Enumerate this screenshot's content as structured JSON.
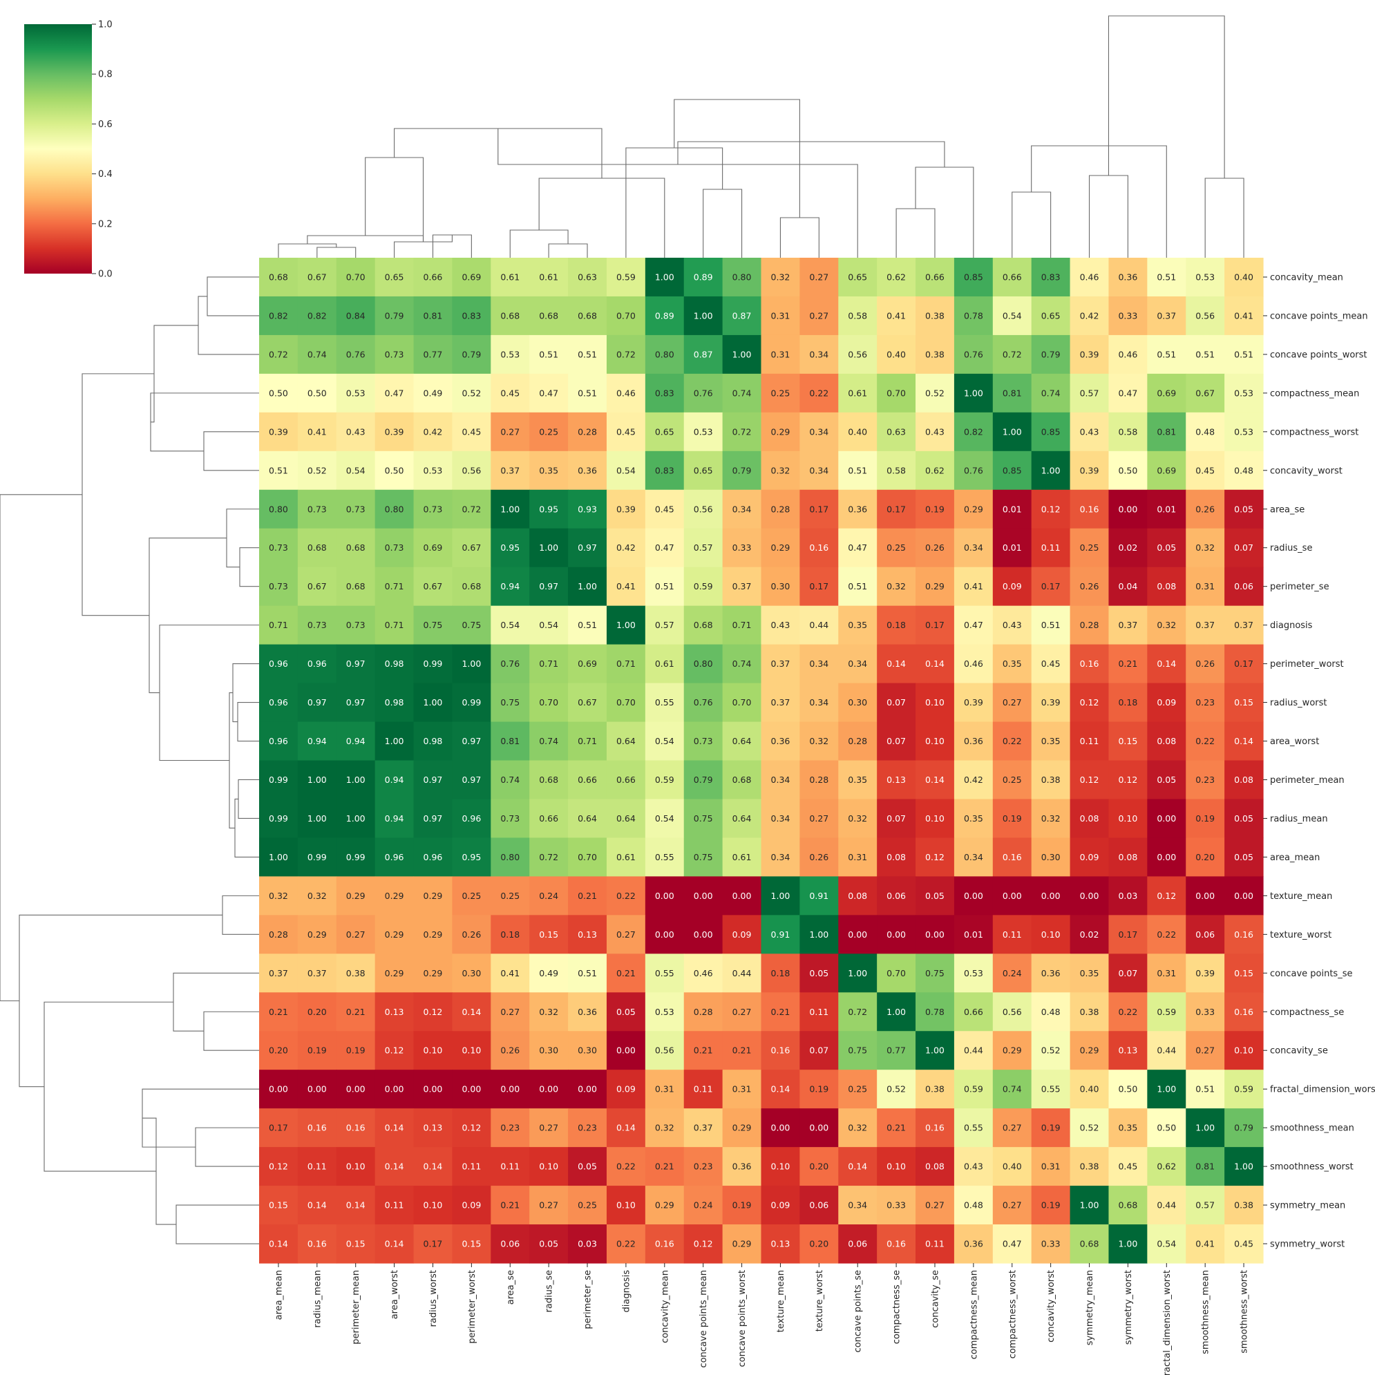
{
  "chart_data": {
    "type": "heatmap",
    "title": "",
    "variant": "clustermap",
    "colormap": "RdYlGn",
    "colors": {
      "low": "#a50026",
      "mid": "#ffffbf",
      "high": "#006837"
    },
    "vmin": 0.0,
    "vmax": 1.0,
    "colorbar_ticks": [
      "0.0",
      "0.2",
      "0.4",
      "0.6",
      "0.8",
      "1.0"
    ],
    "column_labels": [
      "area_mean",
      "radius_mean",
      "perimeter_mean",
      "area_worst",
      "radius_worst",
      "perimeter_worst",
      "area_se",
      "radius_se",
      "perimeter_se",
      "diagnosis",
      "concavity_mean",
      "concave points_mean",
      "concave points_worst",
      "texture_mean",
      "texture_worst",
      "concave points_se",
      "compactness_se",
      "concavity_se",
      "compactness_mean",
      "compactness_worst",
      "concavity_worst",
      "symmetry_mean",
      "symmetry_worst",
      "fractal_dimension_worst",
      "smoothness_mean",
      "smoothness_worst"
    ],
    "row_labels": [
      "concavity_mean",
      "concave points_mean",
      "concave points_worst",
      "compactness_mean",
      "compactness_worst",
      "concavity_worst",
      "area_se",
      "radius_se",
      "perimeter_se",
      "diagnosis",
      "perimeter_worst",
      "radius_worst",
      "area_worst",
      "perimeter_mean",
      "radius_mean",
      "area_mean",
      "texture_mean",
      "texture_worst",
      "concave points_se",
      "compactness_se",
      "concavity_se",
      "fractal_dimension_worst",
      "smoothness_mean",
      "smoothness_worst",
      "symmetry_mean",
      "symmetry_worst"
    ],
    "values": [
      [
        0.68,
        0.67,
        0.7,
        0.65,
        0.66,
        0.69,
        0.61,
        0.61,
        0.63,
        0.59,
        1.0,
        0.89,
        0.8,
        0.32,
        0.27,
        0.65,
        0.62,
        0.66,
        0.85,
        0.66,
        0.83,
        0.46,
        0.36,
        0.51,
        0.53,
        0.4
      ],
      [
        0.82,
        0.82,
        0.84,
        0.79,
        0.81,
        0.83,
        0.68,
        0.68,
        0.68,
        0.7,
        0.89,
        1.0,
        0.87,
        0.31,
        0.27,
        0.58,
        0.41,
        0.38,
        0.78,
        0.54,
        0.65,
        0.42,
        0.33,
        0.37,
        0.56,
        0.41
      ],
      [
        0.72,
        0.74,
        0.76,
        0.73,
        0.77,
        0.79,
        0.53,
        0.51,
        0.51,
        0.72,
        0.8,
        0.87,
        1.0,
        0.31,
        0.34,
        0.56,
        0.4,
        0.38,
        0.76,
        0.72,
        0.79,
        0.39,
        0.46,
        0.51,
        0.51,
        0.51
      ],
      [
        0.5,
        0.5,
        0.53,
        0.47,
        0.49,
        0.52,
        0.45,
        0.47,
        0.51,
        0.46,
        0.83,
        0.76,
        0.74,
        0.25,
        0.22,
        0.61,
        0.7,
        0.52,
        1.0,
        0.81,
        0.74,
        0.57,
        0.47,
        0.69,
        0.67,
        0.53
      ],
      [
        0.39,
        0.41,
        0.43,
        0.39,
        0.42,
        0.45,
        0.27,
        0.25,
        0.28,
        0.45,
        0.65,
        0.53,
        0.72,
        0.29,
        0.34,
        0.4,
        0.63,
        0.43,
        0.82,
        1.0,
        0.85,
        0.43,
        0.58,
        0.81,
        0.48,
        0.53
      ],
      [
        0.51,
        0.52,
        0.54,
        0.5,
        0.53,
        0.56,
        0.37,
        0.35,
        0.36,
        0.54,
        0.83,
        0.65,
        0.79,
        0.32,
        0.34,
        0.51,
        0.58,
        0.62,
        0.76,
        0.85,
        1.0,
        0.39,
        0.5,
        0.69,
        0.45,
        0.48
      ],
      [
        0.8,
        0.73,
        0.73,
        0.8,
        0.73,
        0.72,
        1.0,
        0.95,
        0.93,
        0.39,
        0.45,
        0.56,
        0.34,
        0.28,
        0.17,
        0.36,
        0.17,
        0.19,
        0.29,
        0.01,
        0.12,
        0.16,
        0.0,
        0.01,
        0.26,
        0.05
      ],
      [
        0.73,
        0.68,
        0.68,
        0.73,
        0.69,
        0.67,
        0.95,
        1.0,
        0.97,
        0.42,
        0.47,
        0.57,
        0.33,
        0.29,
        0.16,
        0.47,
        0.25,
        0.26,
        0.34,
        0.01,
        0.11,
        0.25,
        0.02,
        0.05,
        0.32,
        0.07
      ],
      [
        0.73,
        0.67,
        0.68,
        0.71,
        0.67,
        0.68,
        0.94,
        0.97,
        1.0,
        0.41,
        0.51,
        0.59,
        0.37,
        0.3,
        0.17,
        0.51,
        0.32,
        0.29,
        0.41,
        0.09,
        0.17,
        0.26,
        0.04,
        0.08,
        0.31,
        0.06
      ],
      [
        0.71,
        0.73,
        0.73,
        0.71,
        0.75,
        0.75,
        0.54,
        0.54,
        0.51,
        1.0,
        0.57,
        0.68,
        0.71,
        0.43,
        0.44,
        0.35,
        0.18,
        0.17,
        0.47,
        0.43,
        0.51,
        0.28,
        0.37,
        0.32,
        0.37,
        0.37
      ],
      [
        0.96,
        0.96,
        0.97,
        0.98,
        0.99,
        1.0,
        0.76,
        0.71,
        0.69,
        0.71,
        0.61,
        0.8,
        0.74,
        0.37,
        0.34,
        0.34,
        0.14,
        0.14,
        0.46,
        0.35,
        0.45,
        0.16,
        0.21,
        0.14,
        0.26,
        0.17
      ],
      [
        0.96,
        0.97,
        0.97,
        0.98,
        1.0,
        0.99,
        0.75,
        0.7,
        0.67,
        0.7,
        0.55,
        0.76,
        0.7,
        0.37,
        0.34,
        0.3,
        0.07,
        0.1,
        0.39,
        0.27,
        0.39,
        0.12,
        0.18,
        0.09,
        0.23,
        0.15
      ],
      [
        0.96,
        0.94,
        0.94,
        1.0,
        0.98,
        0.97,
        0.81,
        0.74,
        0.71,
        0.64,
        0.54,
        0.73,
        0.64,
        0.36,
        0.32,
        0.28,
        0.07,
        0.1,
        0.36,
        0.22,
        0.35,
        0.11,
        0.15,
        0.08,
        0.22,
        0.14
      ],
      [
        0.99,
        1.0,
        1.0,
        0.94,
        0.97,
        0.97,
        0.74,
        0.68,
        0.66,
        0.66,
        0.59,
        0.79,
        0.68,
        0.34,
        0.28,
        0.35,
        0.13,
        0.14,
        0.42,
        0.25,
        0.38,
        0.12,
        0.12,
        0.05,
        0.23,
        0.08
      ],
      [
        0.99,
        1.0,
        1.0,
        0.94,
        0.97,
        0.96,
        0.73,
        0.66,
        0.64,
        0.64,
        0.54,
        0.75,
        0.64,
        0.34,
        0.27,
        0.32,
        0.07,
        0.1,
        0.35,
        0.19,
        0.32,
        0.08,
        0.1,
        0.0,
        0.19,
        0.05
      ],
      [
        1.0,
        0.99,
        0.99,
        0.96,
        0.96,
        0.95,
        0.8,
        0.72,
        0.7,
        0.61,
        0.55,
        0.75,
        0.61,
        0.34,
        0.26,
        0.31,
        0.08,
        0.12,
        0.34,
        0.16,
        0.3,
        0.09,
        0.08,
        0.0,
        0.2,
        0.05
      ],
      [
        0.32,
        0.32,
        0.29,
        0.29,
        0.29,
        0.25,
        0.25,
        0.24,
        0.21,
        0.22,
        0.0,
        0.0,
        0.0,
        1.0,
        0.91,
        0.08,
        0.06,
        0.05,
        0.0,
        0.0,
        0.0,
        0.0,
        0.03,
        0.12,
        0.0,
        0.0
      ],
      [
        0.28,
        0.29,
        0.27,
        0.29,
        0.29,
        0.26,
        0.18,
        0.15,
        0.13,
        0.27,
        0.0,
        0.0,
        0.09,
        0.91,
        1.0,
        0.0,
        0.0,
        0.0,
        0.01,
        0.11,
        0.1,
        0.02,
        0.17,
        0.22,
        0.06,
        0.16
      ],
      [
        0.37,
        0.37,
        0.38,
        0.29,
        0.29,
        0.3,
        0.41,
        0.49,
        0.51,
        0.21,
        0.55,
        0.46,
        0.44,
        0.18,
        0.05,
        1.0,
        0.7,
        0.75,
        0.53,
        0.24,
        0.36,
        0.35,
        0.07,
        0.31,
        0.39,
        0.15
      ],
      [
        0.21,
        0.2,
        0.21,
        0.13,
        0.12,
        0.14,
        0.27,
        0.32,
        0.36,
        0.05,
        0.53,
        0.28,
        0.27,
        0.21,
        0.11,
        0.72,
        1.0,
        0.78,
        0.66,
        0.56,
        0.48,
        0.38,
        0.22,
        0.59,
        0.33,
        0.16
      ],
      [
        0.2,
        0.19,
        0.19,
        0.12,
        0.1,
        0.1,
        0.26,
        0.3,
        0.3,
        0.0,
        0.56,
        0.21,
        0.21,
        0.16,
        0.07,
        0.75,
        0.77,
        1.0,
        0.44,
        0.29,
        0.52,
        0.29,
        0.13,
        0.44,
        0.27,
        0.1
      ],
      [
        0.0,
        0.0,
        0.0,
        0.0,
        0.0,
        0.0,
        0.0,
        0.0,
        0.0,
        0.09,
        0.31,
        0.11,
        0.31,
        0.14,
        0.19,
        0.25,
        0.52,
        0.38,
        0.59,
        0.74,
        0.55,
        0.4,
        0.5,
        1.0,
        0.51,
        0.59
      ],
      [
        0.17,
        0.16,
        0.16,
        0.14,
        0.13,
        0.12,
        0.23,
        0.27,
        0.23,
        0.14,
        0.32,
        0.37,
        0.29,
        0.0,
        0.0,
        0.32,
        0.21,
        0.16,
        0.55,
        0.27,
        0.19,
        0.52,
        0.35,
        0.5,
        1.0,
        0.79
      ],
      [
        0.12,
        0.11,
        0.1,
        0.14,
        0.14,
        0.11,
        0.11,
        0.1,
        0.05,
        0.22,
        0.21,
        0.23,
        0.36,
        0.1,
        0.2,
        0.14,
        0.1,
        0.08,
        0.43,
        0.4,
        0.31,
        0.38,
        0.45,
        0.62,
        0.81,
        1.0
      ],
      [
        0.15,
        0.14,
        0.14,
        0.11,
        0.1,
        0.09,
        0.21,
        0.27,
        0.25,
        0.1,
        0.29,
        0.24,
        0.19,
        0.09,
        0.06,
        0.34,
        0.33,
        0.27,
        0.48,
        0.27,
        0.19,
        1.0,
        0.68,
        0.44,
        0.57,
        0.38
      ],
      [
        0.14,
        0.16,
        0.15,
        0.14,
        0.17,
        0.15,
        0.06,
        0.05,
        0.03,
        0.22,
        0.16,
        0.12,
        0.29,
        0.13,
        0.2,
        0.06,
        0.16,
        0.11,
        0.36,
        0.47,
        0.33,
        0.68,
        1.0,
        0.54,
        0.41,
        0.45
      ]
    ]
  }
}
